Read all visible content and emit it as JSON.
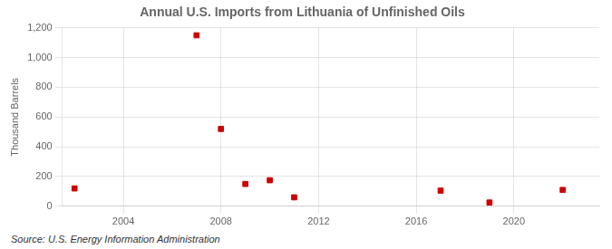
{
  "chart_data": {
    "type": "scatter",
    "title": "Annual U.S. Imports from Lithuania of Unfinished Oils",
    "ylabel": "Thousand Barrels",
    "annotations": [
      "Source: U.S. Energy Information Administration"
    ],
    "x": [
      2002,
      2007,
      2008,
      2009,
      2010,
      2011,
      2017,
      2019,
      2022
    ],
    "values": [
      120,
      1150,
      520,
      150,
      175,
      60,
      105,
      25,
      110
    ],
    "color": "#cc0000",
    "marker": "square",
    "xlim": [
      2001.5,
      2023.5
    ],
    "xticks": [
      2004,
      2008,
      2012,
      2016,
      2020
    ],
    "ylim": [
      0,
      1200
    ],
    "yticks": [
      0,
      200,
      400,
      600,
      800,
      {
        "value": 1000,
        "label": "1,000"
      },
      {
        "value": 1200,
        "label": "1,200"
      }
    ],
    "grid": true
  }
}
